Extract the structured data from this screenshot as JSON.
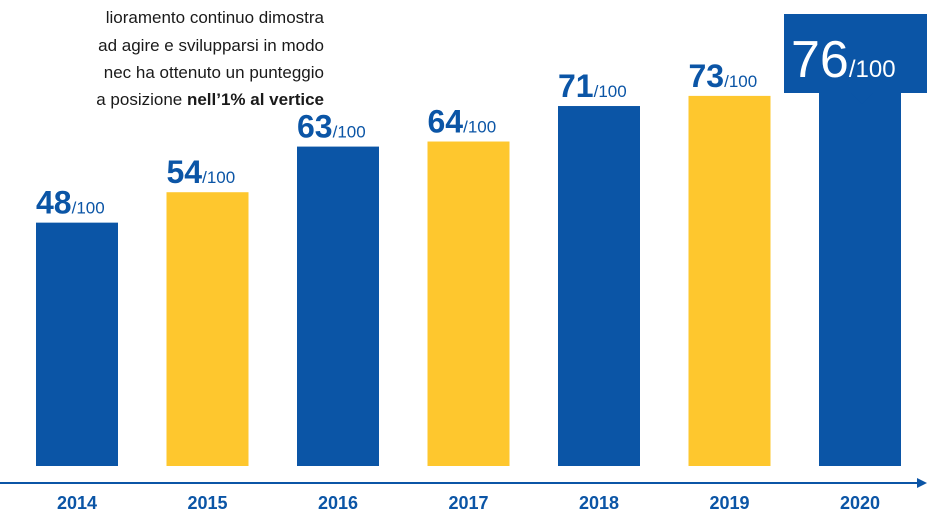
{
  "intro": {
    "line1": "lioramento continuo dimostra",
    "line2": "ad agire e svilupparsi in modo",
    "line3": "nec ha ottenuto un punteggio",
    "line4_normal": "a posizione ",
    "line4_bold": "nell’1% al vertice"
  },
  "colors": {
    "blue": "#0b55a6",
    "yellow": "#fec72e",
    "axis": "#0b55a6",
    "text": "#1a1a1a"
  },
  "chart_data": {
    "type": "bar",
    "categories": [
      "2014",
      "2015",
      "2016",
      "2017",
      "2018",
      "2019",
      "2020"
    ],
    "values": [
      48,
      54,
      63,
      64,
      71,
      73,
      76
    ],
    "value_labels": [
      "48",
      "54",
      "63",
      "64",
      "71",
      "73",
      "76"
    ],
    "label_suffix": "/100",
    "bar_colors": [
      "blue",
      "yellow",
      "blue",
      "yellow",
      "blue",
      "yellow",
      "blue"
    ],
    "highlighted_category": "2020",
    "ylim": [
      0,
      100
    ],
    "grid": false,
    "legend": "none"
  }
}
